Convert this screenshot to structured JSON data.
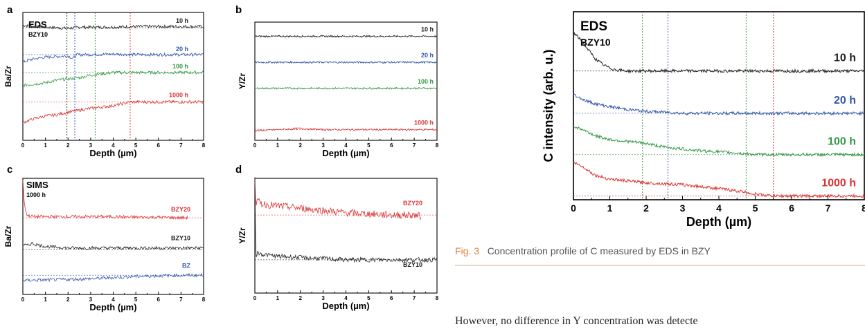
{
  "chart_data": [
    {
      "id": "a",
      "type": "line",
      "panel_label": "a",
      "title": "EDS",
      "subtitle": "BZY10",
      "xlabel": "Depth (µm)",
      "ylabel": "Ba/Zr",
      "xlim": [
        0,
        8
      ],
      "xticks": [
        "0",
        "1",
        "2",
        "3",
        "4",
        "5",
        "6",
        "7",
        "8"
      ],
      "vlines": [
        {
          "x": 1.95,
          "color": "#333333"
        },
        {
          "x": 2.3,
          "color": "#3355aa"
        },
        {
          "x": 3.2,
          "color": "#339944"
        },
        {
          "x": 4.75,
          "color": "#dd3333"
        }
      ],
      "series": [
        {
          "name": "10 h",
          "color": "#222222",
          "x": [
            0,
            0.5,
            1,
            1.5,
            2,
            2.5,
            3,
            4,
            5,
            6,
            7,
            8
          ],
          "y": [
            0.9,
            0.89,
            0.885,
            0.88,
            0.875,
            0.885,
            0.885,
            0.885,
            0.89,
            0.89,
            0.89,
            0.89
          ],
          "ref": 0.88
        },
        {
          "name": "20 h",
          "color": "#3355aa",
          "x": [
            0,
            0.3,
            0.6,
            1,
            1.5,
            2,
            2.2,
            2.4,
            3,
            4,
            5,
            6,
            7,
            8
          ],
          "y": [
            0.61,
            0.63,
            0.64,
            0.65,
            0.655,
            0.66,
            0.64,
            0.67,
            0.67,
            0.675,
            0.67,
            0.67,
            0.67,
            0.67
          ],
          "ref": 0.67
        },
        {
          "name": "100 h",
          "color": "#339944",
          "x": [
            0,
            0.5,
            1,
            1.5,
            2,
            2.5,
            3,
            3.5,
            4,
            5,
            6,
            7,
            8
          ],
          "y": [
            0.43,
            0.44,
            0.45,
            0.47,
            0.48,
            0.49,
            0.51,
            0.52,
            0.53,
            0.53,
            0.53,
            0.53,
            0.53
          ],
          "ref": 0.53
        },
        {
          "name": "1000 h",
          "color": "#dd3333",
          "x": [
            0,
            0.5,
            1,
            1.5,
            2,
            3,
            4,
            4.75,
            5,
            6,
            7,
            8
          ],
          "y": [
            0.14,
            0.17,
            0.19,
            0.2,
            0.22,
            0.25,
            0.27,
            0.3,
            0.3,
            0.3,
            0.3,
            0.3
          ],
          "ref": 0.3
        }
      ]
    },
    {
      "id": "b",
      "type": "line",
      "panel_label": "b",
      "title": "",
      "subtitle": "",
      "xlabel": "Depth (µm)",
      "ylabel": "Y/Zr",
      "xlim": [
        0,
        8
      ],
      "xticks": [
        "0",
        "1",
        "2",
        "3",
        "4",
        "5",
        "6",
        "7",
        "8"
      ],
      "vlines": [],
      "series": [
        {
          "name": "10 h",
          "color": "#222222",
          "x": [
            0,
            1,
            2,
            3,
            4,
            5,
            6,
            7,
            8
          ],
          "y": [
            0.88,
            0.88,
            0.88,
            0.88,
            0.88,
            0.88,
            0.88,
            0.88,
            0.88
          ],
          "ref": 0.88
        },
        {
          "name": "20 h",
          "color": "#3355aa",
          "x": [
            0,
            1,
            2,
            3,
            4,
            5,
            6,
            7,
            8
          ],
          "y": [
            0.66,
            0.66,
            0.66,
            0.66,
            0.66,
            0.66,
            0.66,
            0.66,
            0.66
          ],
          "ref": 0.66
        },
        {
          "name": "100 h",
          "color": "#339944",
          "x": [
            0,
            1,
            2,
            3,
            4,
            5,
            6,
            7,
            8
          ],
          "y": [
            0.44,
            0.44,
            0.44,
            0.44,
            0.44,
            0.44,
            0.44,
            0.44,
            0.44
          ],
          "ref": 0.44
        },
        {
          "name": "1000 h",
          "color": "#dd3333",
          "x": [
            0,
            1,
            2,
            3,
            4,
            5,
            6,
            7,
            8
          ],
          "y": [
            0.08,
            0.09,
            0.1,
            0.09,
            0.09,
            0.09,
            0.09,
            0.09,
            0.09
          ],
          "ref": 0.09
        }
      ]
    },
    {
      "id": "c",
      "type": "line",
      "panel_label": "c",
      "title": "SIMS",
      "subtitle": "1000 h",
      "xlabel": "Depth (µm)",
      "ylabel": "Ba/Zr",
      "xlim": [
        0,
        8
      ],
      "xticks": [
        "0",
        "1",
        "2",
        "3",
        "4",
        "5",
        "6",
        "7",
        "8"
      ],
      "vlines": [],
      "series": [
        {
          "name": "BZY20",
          "color": "#dd3333",
          "x": [
            0,
            0.08,
            0.2,
            0.5,
            1,
            2,
            3,
            4,
            5,
            6,
            7,
            7.3
          ],
          "y": [
            0.98,
            0.75,
            0.68,
            0.67,
            0.67,
            0.67,
            0.67,
            0.67,
            0.665,
            0.665,
            0.66,
            0.66
          ],
          "ref": 0.66,
          "ref_x_end": 8
        },
        {
          "name": "BZY10",
          "color": "#222222",
          "x": [
            0,
            0.2,
            0.4,
            0.8,
            1.2,
            2,
            3,
            4,
            5,
            6,
            7,
            8
          ],
          "y": [
            0.43,
            0.42,
            0.44,
            0.42,
            0.41,
            0.4,
            0.4,
            0.4,
            0.4,
            0.4,
            0.4,
            0.4
          ],
          "ref": 0.39,
          "ref_x_end": 8
        },
        {
          "name": "BZ",
          "color": "#3355aa",
          "x": [
            0,
            1,
            2,
            3,
            4,
            5,
            6,
            7,
            8
          ],
          "y": [
            0.12,
            0.125,
            0.13,
            0.135,
            0.145,
            0.155,
            0.16,
            0.165,
            0.165
          ],
          "ref": 0.165,
          "ref_x_end": 8
        }
      ]
    },
    {
      "id": "d",
      "type": "line",
      "panel_label": "d",
      "title": "",
      "subtitle": "",
      "xlabel": "Depth (µm)",
      "ylabel": "Y/Zr",
      "xlim": [
        0,
        8
      ],
      "xticks": [
        "0",
        "1",
        "2",
        "3",
        "4",
        "5",
        "6",
        "7",
        "8"
      ],
      "vlines": [],
      "series": [
        {
          "name": "BZY20",
          "color": "#dd3333",
          "x": [
            0,
            0.05,
            0.1,
            0.3,
            0.6,
            1,
            1.5,
            2,
            3,
            4,
            5,
            6,
            7,
            7.3
          ],
          "y": [
            0.99,
            0.78,
            0.8,
            0.78,
            0.77,
            0.76,
            0.75,
            0.74,
            0.72,
            0.7,
            0.69,
            0.68,
            0.68,
            0.67
          ],
          "ref": 0.68,
          "ref_x_end": 8
        },
        {
          "name": "BZY10",
          "color": "#222222",
          "x": [
            0,
            0.04,
            0.1,
            0.3,
            0.6,
            1,
            2,
            3,
            4,
            5,
            6,
            7,
            8
          ],
          "y": [
            0.99,
            0.32,
            0.35,
            0.34,
            0.33,
            0.32,
            0.31,
            0.3,
            0.29,
            0.29,
            0.29,
            0.29,
            0.29
          ],
          "ref": 0.29,
          "ref_x_end": 8
        }
      ]
    },
    {
      "id": "e",
      "type": "line",
      "panel_label": "",
      "title": "EDS",
      "subtitle": "BZY10",
      "xlabel": "Depth (µm)",
      "ylabel": "C intensity (arb. u.)",
      "xlim": [
        0,
        8
      ],
      "xticks": [
        "0",
        "1",
        "2",
        "3",
        "4",
        "5",
        "6",
        "7",
        "8"
      ],
      "vlines": [
        {
          "x": 1.9,
          "color": "#339944"
        },
        {
          "x": 2.6,
          "color": "#3355aa"
        },
        {
          "x": 4.75,
          "color": "#339944"
        },
        {
          "x": 5.5,
          "color": "#dd3333"
        }
      ],
      "series": [
        {
          "name": "10 h",
          "color": "#222222",
          "x": [
            0,
            0.2,
            0.4,
            0.6,
            0.8,
            1,
            1.2,
            1.5,
            2,
            3,
            4,
            5,
            6,
            7,
            8
          ],
          "y": [
            0.89,
            0.85,
            0.8,
            0.75,
            0.72,
            0.7,
            0.69,
            0.685,
            0.685,
            0.685,
            0.685,
            0.685,
            0.685,
            0.685,
            0.685
          ],
          "ref": 0.685
        },
        {
          "name": "20 h",
          "color": "#3355aa",
          "x": [
            0,
            0.3,
            0.6,
            1,
            1.5,
            2,
            2.6,
            3,
            4,
            5,
            6,
            7,
            8
          ],
          "y": [
            0.56,
            0.53,
            0.51,
            0.495,
            0.48,
            0.47,
            0.465,
            0.46,
            0.46,
            0.46,
            0.46,
            0.46,
            0.46
          ],
          "ref": 0.46
        },
        {
          "name": "100 h",
          "color": "#339944",
          "x": [
            0,
            0.3,
            0.6,
            1,
            1.5,
            2,
            2.5,
            3,
            3.5,
            4,
            4.75,
            5,
            6,
            7,
            8
          ],
          "y": [
            0.39,
            0.37,
            0.34,
            0.32,
            0.31,
            0.3,
            0.28,
            0.27,
            0.26,
            0.255,
            0.245,
            0.24,
            0.24,
            0.24,
            0.24
          ],
          "ref": 0.24
        },
        {
          "name": "1000 h",
          "color": "#dd3333",
          "x": [
            0,
            0.3,
            0.6,
            1,
            1.5,
            2,
            3,
            4,
            4.75,
            5,
            5.5,
            6,
            7,
            8
          ],
          "y": [
            0.2,
            0.17,
            0.13,
            0.11,
            0.1,
            0.09,
            0.08,
            0.06,
            0.04,
            0.03,
            0.02,
            0.02,
            0.02,
            0.02
          ],
          "ref": 0.02
        }
      ]
    }
  ],
  "caption": {
    "fig_label": "Fig. 3",
    "text": "Concentration profile of C measured by EDS in BZY"
  },
  "body_text": "However, no difference in Y concentration was detecte"
}
